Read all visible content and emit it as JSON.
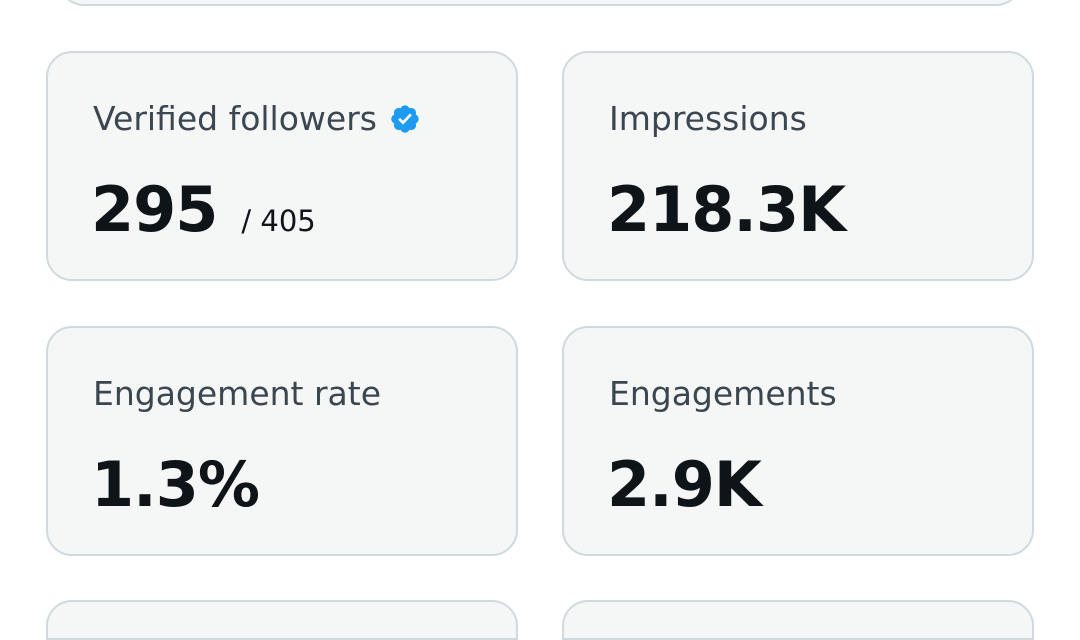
{
  "cards": [
    {
      "label": "Verified followers",
      "value": "295",
      "secondary": "/ 405"
    },
    {
      "label": "Impressions",
      "value": "218.3K"
    },
    {
      "label": "Engagement rate",
      "value": "1.3%"
    },
    {
      "label": "Engagements",
      "value": "2.9K"
    }
  ]
}
